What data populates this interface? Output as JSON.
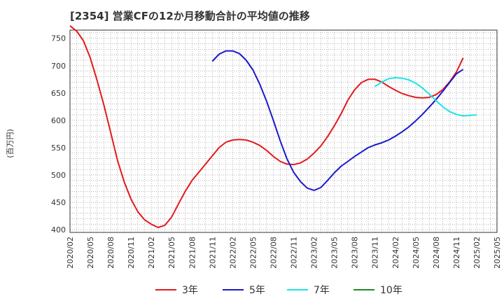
{
  "chart_data": {
    "type": "line",
    "title": "[2354]  営業CFの12か月移動合計の平均値の推移",
    "ylabel": "(百万円)",
    "xlabel": "",
    "ylim": [
      395,
      765
    ],
    "y_ticks": [
      400,
      450,
      500,
      550,
      600,
      650,
      700,
      750
    ],
    "x_tick_labels": [
      "2020/02",
      "2020/05",
      "2020/08",
      "2020/11",
      "2021/02",
      "2021/05",
      "2021/08",
      "2021/11",
      "2022/02",
      "2022/05",
      "2022/08",
      "2022/11",
      "2023/02",
      "2023/05",
      "2023/08",
      "2023/11",
      "2024/02",
      "2024/05",
      "2024/08",
      "2024/11",
      "2025/02",
      "2025/05"
    ],
    "grid": true,
    "legend_position": "bottom",
    "series": [
      {
        "name": "3年",
        "color": "#e31a1c",
        "start": "2020/02",
        "values": [
          773,
          763,
          745,
          714,
          673,
          628,
          578,
          527,
          487,
          456,
          433,
          418,
          410,
          404,
          408,
          423,
          447,
          470,
          490,
          505,
          520,
          535,
          550,
          560,
          564,
          565,
          564,
          560,
          554,
          545,
          534,
          525,
          520,
          519,
          522,
          529,
          540,
          553,
          570,
          590,
          612,
          637,
          656,
          669,
          675,
          675,
          670,
          662,
          655,
          649,
          645,
          642,
          641,
          642,
          647,
          656,
          670,
          688,
          714
        ]
      },
      {
        "name": "5年",
        "color": "#1a1ac8",
        "start": "2021/11",
        "values": [
          708,
          721,
          727,
          727,
          722,
          710,
          692,
          666,
          635,
          600,
          563,
          530,
          505,
          488,
          476,
          472,
          477,
          490,
          504,
          516,
          525,
          534,
          542,
          550,
          555,
          559,
          564,
          571,
          579,
          588,
          599,
          611,
          624,
          638,
          653,
          669,
          685,
          693
        ]
      },
      {
        "name": "7年",
        "color": "#1ae6e6",
        "start": "2023/11",
        "values": [
          662,
          670,
          676,
          678,
          677,
          674,
          668,
          659,
          648,
          636,
          625,
          616,
          611,
          608,
          609,
          610
        ]
      },
      {
        "name": "10年",
        "color": "#228b22",
        "start": "",
        "values": []
      }
    ]
  }
}
